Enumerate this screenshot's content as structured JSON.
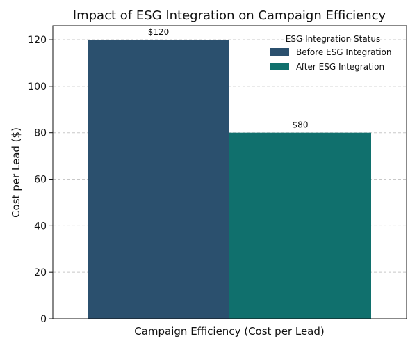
{
  "chart_data": {
    "type": "bar",
    "title": "Impact of ESG Integration on Campaign Efficiency",
    "xlabel": "Campaign Efficiency (Cost per Lead)",
    "ylabel": "Cost per Lead ($)",
    "ylim": [
      0,
      126
    ],
    "yticks": [
      0,
      20,
      40,
      60,
      80,
      100,
      120
    ],
    "grid": true,
    "legend": {
      "title": "ESG Integration Status",
      "placement": "top-right"
    },
    "series": [
      {
        "name": "Before ESG Integration",
        "values": [
          120
        ],
        "label": "$120",
        "color": "#2b506e"
      },
      {
        "name": "After ESG Integration",
        "values": [
          80
        ],
        "label": "$80",
        "color": "#10706d"
      }
    ]
  }
}
